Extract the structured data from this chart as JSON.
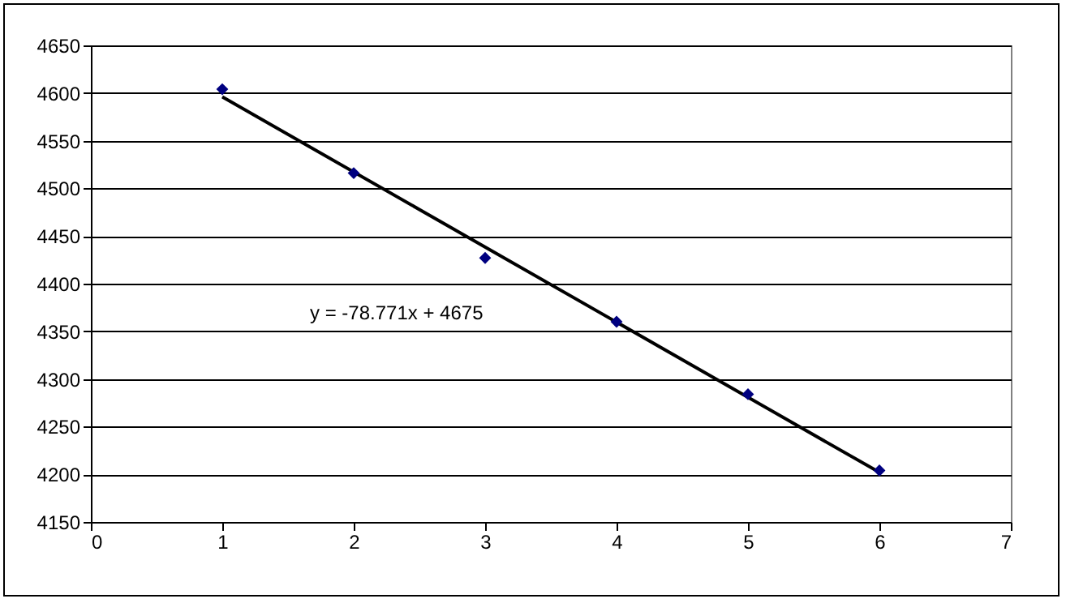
{
  "chart_data": {
    "type": "scatter",
    "series": [
      {
        "type": "line",
        "color": "#000000",
        "marker": "none",
        "x": [
          1,
          6
        ],
        "values": [
          4596,
          4202
        ]
      },
      {
        "color": "#000080",
        "marker": "diamond",
        "x": [
          1,
          2,
          3,
          4,
          5,
          6
        ],
        "values": [
          4604,
          4516,
          4427,
          4360,
          4284,
          4204
        ]
      }
    ],
    "annotations": [
      "y = -78.771x + 4675"
    ],
    "xlim": [
      0,
      7
    ],
    "xticks": [
      0,
      1,
      2,
      3,
      4,
      5,
      6,
      7
    ],
    "ylim": [
      4150,
      4650
    ],
    "yticks": [
      4150,
      4200,
      4250,
      4300,
      4350,
      4400,
      4450,
      4500,
      4550,
      4600,
      4650
    ],
    "grid": "y"
  }
}
